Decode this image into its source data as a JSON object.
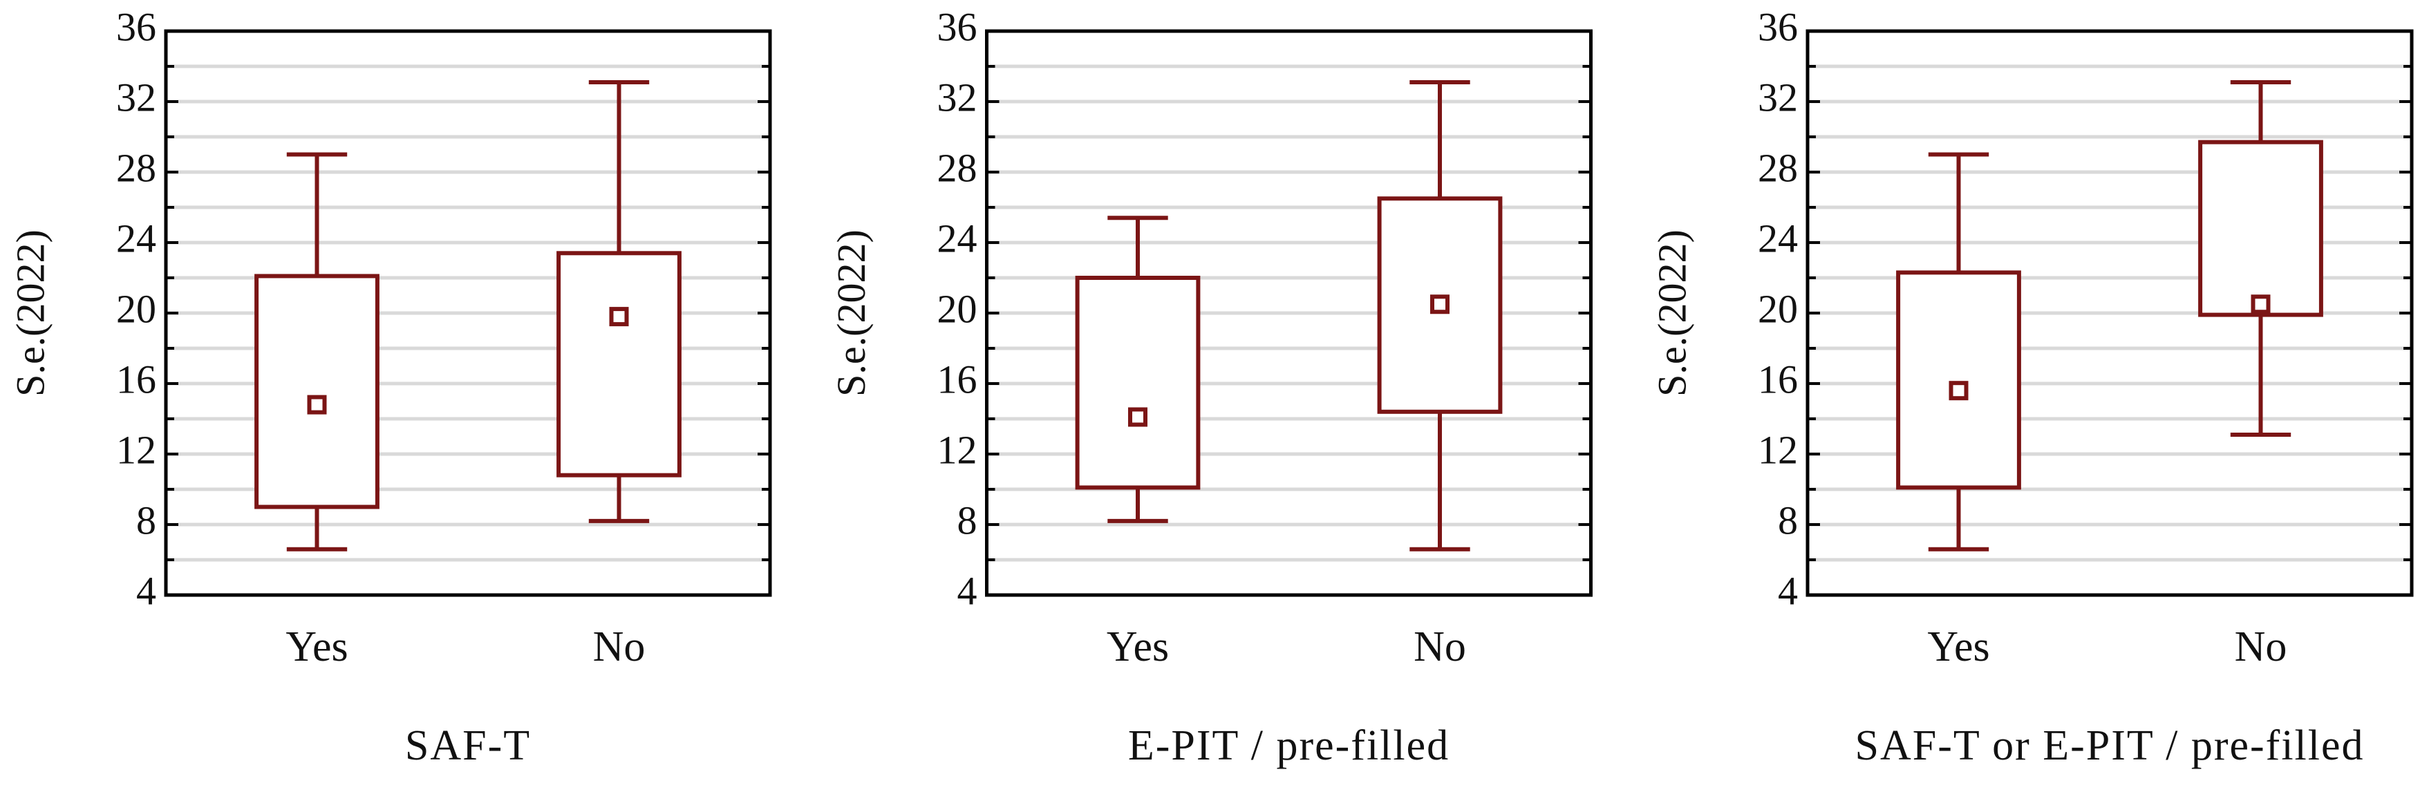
{
  "chart_data": [
    {
      "type": "box",
      "ylabel": "S.e.(2022)",
      "xlabel": "SAF-T",
      "categories": [
        "Yes",
        "No"
      ],
      "color": "#7b1515",
      "values": [
        {
          "min": 6.6,
          "q1": 9.0,
          "median": 14.8,
          "q3": 22.1,
          "max": 29.0
        },
        {
          "min": 8.2,
          "q1": 10.8,
          "median": 19.8,
          "q3": 23.4,
          "max": 33.1
        }
      ],
      "ylim": [
        4,
        36
      ],
      "yticks": [
        4,
        8,
        12,
        16,
        20,
        24,
        28,
        32,
        36
      ],
      "minor_yticks": [
        6,
        10,
        14,
        18,
        22,
        26,
        30,
        34
      ],
      "grid": true
    },
    {
      "type": "box",
      "ylabel": "S.e.(2022)",
      "xlabel": "E-PIT / pre-filled",
      "categories": [
        "Yes",
        "No"
      ],
      "color": "#7b1515",
      "values": [
        {
          "min": 8.2,
          "q1": 10.1,
          "median": 14.1,
          "q3": 22.0,
          "max": 25.4
        },
        {
          "min": 6.6,
          "q1": 14.4,
          "median": 20.5,
          "q3": 26.5,
          "max": 33.1
        }
      ],
      "ylim": [
        4,
        36
      ],
      "yticks": [
        4,
        8,
        12,
        16,
        20,
        24,
        28,
        32,
        36
      ],
      "minor_yticks": [
        6,
        10,
        14,
        18,
        22,
        26,
        30,
        34
      ],
      "grid": true
    },
    {
      "type": "box",
      "ylabel": "S.e.(2022)",
      "xlabel": "SAF-T or E-PIT / pre-filled",
      "categories": [
        "Yes",
        "No"
      ],
      "color": "#7b1515",
      "values": [
        {
          "min": 6.6,
          "q1": 10.1,
          "median": 15.6,
          "q3": 22.3,
          "max": 29.0
        },
        {
          "min": 13.1,
          "q1": 19.9,
          "median": 20.5,
          "q3": 29.7,
          "max": 33.1
        }
      ],
      "ylim": [
        4,
        36
      ],
      "yticks": [
        4,
        8,
        12,
        16,
        20,
        24,
        28,
        32,
        36
      ],
      "minor_yticks": [
        6,
        10,
        14,
        18,
        22,
        26,
        30,
        34
      ],
      "grid": true
    }
  ]
}
